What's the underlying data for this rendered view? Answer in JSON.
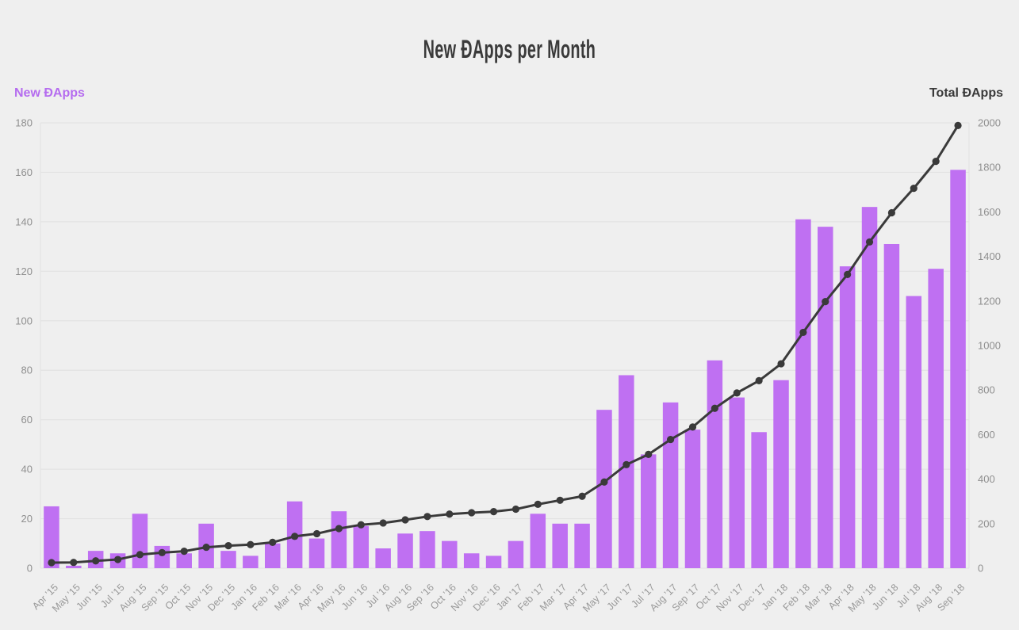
{
  "title": "New ĐApps per Month",
  "legend": {
    "left": "New ĐApps",
    "right": "Total ĐApps"
  },
  "colors": {
    "background": "#efefef",
    "bar": "#bf70f2",
    "line": "#3a3a3a",
    "marker": "#3a3a3a",
    "grid": "#e3e3e3",
    "y_tick_text": "#8f8f8f",
    "x_tick_text": "#999999",
    "legend_left_text": "#b56cef",
    "legend_right_text": "#3a3a3a",
    "title_text": "#3a3a3a"
  },
  "chart_data": {
    "type": "bar",
    "title": "New ĐApps per Month",
    "grid": true,
    "legend_position": "top",
    "categories": [
      "Apr ’15",
      "May ’15",
      "Jun ’15",
      "Jul ’15",
      "Aug ’15",
      "Sep ’15",
      "Oct ’15",
      "Nov ’15",
      "Dec ’15",
      "Jan ’16",
      "Feb ’16",
      "Mar ’16",
      "Apr ’16",
      "May ’16",
      "Jun ’16",
      "Jul ’16",
      "Aug ’16",
      "Sep ’16",
      "Oct ’16",
      "Nov ’16",
      "Dec ’16",
      "Jan ’17",
      "Feb ’17",
      "Mar ’17",
      "Apr ’17",
      "May ’17",
      "Jun ’17",
      "Jul ’17",
      "Aug ’17",
      "Sep ’17",
      "Oct ’17",
      "Nov ’17",
      "Dec ’17",
      "Jan ’18",
      "Feb ’18",
      "Mar ’18",
      "Apr ’18",
      "May ’18",
      "Jun ’18",
      "Jul ’18",
      "Aug ’18",
      "Sep ’18"
    ],
    "left_axis": {
      "label": "New ĐApps",
      "min": 0,
      "max": 180,
      "step": 20
    },
    "right_axis": {
      "label": "Total ĐApps",
      "min": 0,
      "max": 2000,
      "step": 200
    },
    "series": [
      {
        "name": "New ĐApps",
        "type": "bar",
        "axis": "left",
        "values": [
          25,
          1,
          7,
          6,
          22,
          9,
          6,
          18,
          7,
          5,
          10,
          27,
          12,
          23,
          17,
          8,
          14,
          15,
          11,
          6,
          5,
          11,
          22,
          18,
          18,
          64,
          78,
          46,
          67,
          56,
          84,
          69,
          55,
          76,
          141,
          138,
          122,
          146,
          131,
          110,
          121,
          161
        ]
      },
      {
        "name": "Total ĐApps",
        "type": "line",
        "axis": "right",
        "values": [
          25,
          26,
          33,
          39,
          61,
          70,
          76,
          94,
          101,
          106,
          116,
          143,
          155,
          178,
          195,
          203,
          217,
          232,
          243,
          249,
          254,
          265,
          287,
          305,
          323,
          387,
          465,
          511,
          578,
          634,
          718,
          787,
          842,
          918,
          1059,
          1197,
          1319,
          1465,
          1596,
          1706,
          1827,
          1988
        ]
      }
    ]
  }
}
